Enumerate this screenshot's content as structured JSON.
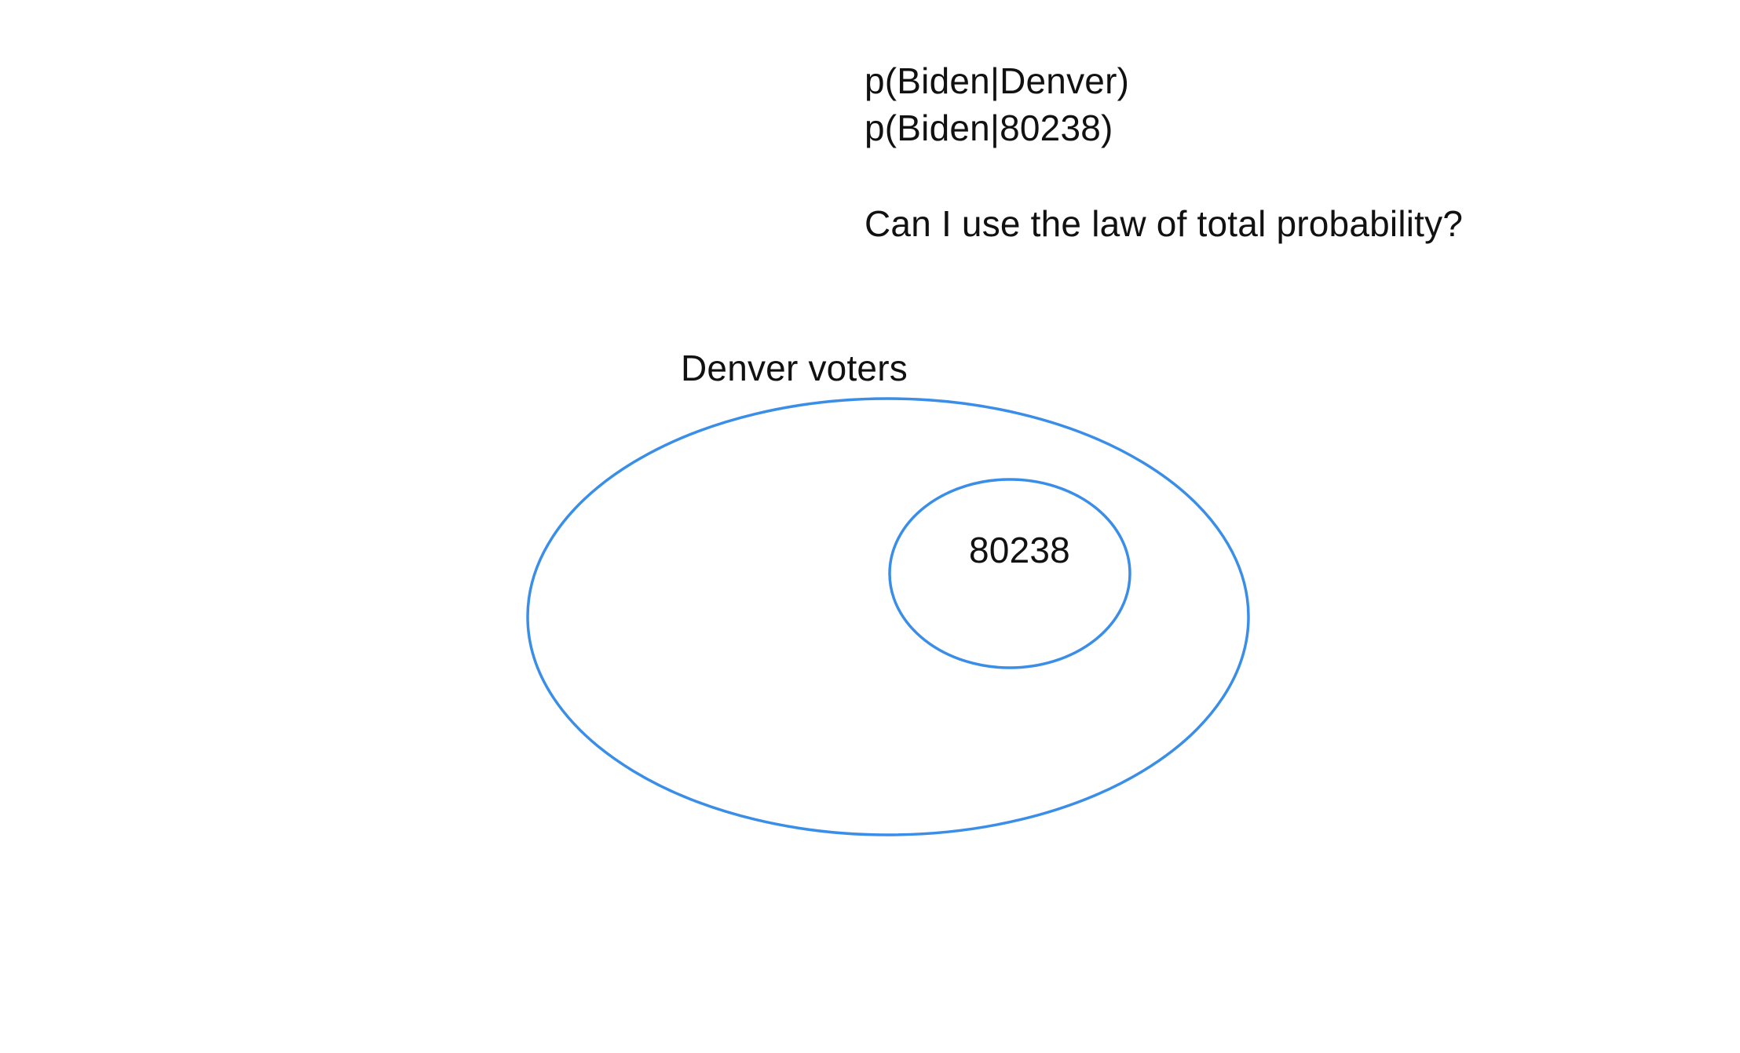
{
  "notes": {
    "line_1": "p(Biden|Denver)",
    "line_2": "p(Biden|80238)",
    "line_3": "Can I use the law of total probability?"
  },
  "diagram": {
    "outer_set": {
      "label": "Denver voters",
      "stroke_color": "#3a8ee8"
    },
    "inner_set": {
      "label": "80238",
      "stroke_color": "#3a8ee8"
    }
  }
}
